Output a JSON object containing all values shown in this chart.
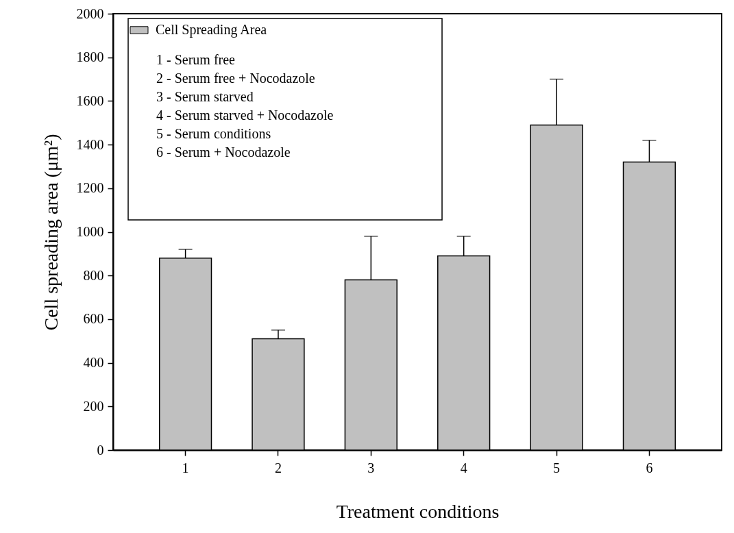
{
  "chart_data": {
    "type": "bar",
    "xlabel": "Treatment conditions",
    "ylabel": "Cell spreading area (μm²)",
    "categories": [
      "1",
      "2",
      "3",
      "4",
      "5",
      "6"
    ],
    "series": [
      {
        "name": "Cell Spreading Area",
        "color": "#c0c0c0",
        "values": [
          880,
          510,
          780,
          890,
          1490,
          1320
        ],
        "errors": [
          [
            880,
            920
          ],
          [
            510,
            550
          ],
          [
            780,
            980
          ],
          [
            890,
            980
          ],
          [
            1490,
            1700
          ],
          [
            1320,
            1420
          ]
        ]
      }
    ],
    "ylim": [
      0,
      2000
    ],
    "yticks": [
      0,
      200,
      400,
      600,
      800,
      1000,
      1200,
      1400,
      1600,
      1800,
      2000
    ],
    "grid": false,
    "legend": "top left",
    "annotations": [
      "1 - Serum free",
      "2 - Serum free + Nocodazole",
      "3 - Serum starved",
      "4 - Serum starved + Nocodazole",
      "5 - Serum conditions",
      "6 - Serum + Nocodazole"
    ]
  }
}
